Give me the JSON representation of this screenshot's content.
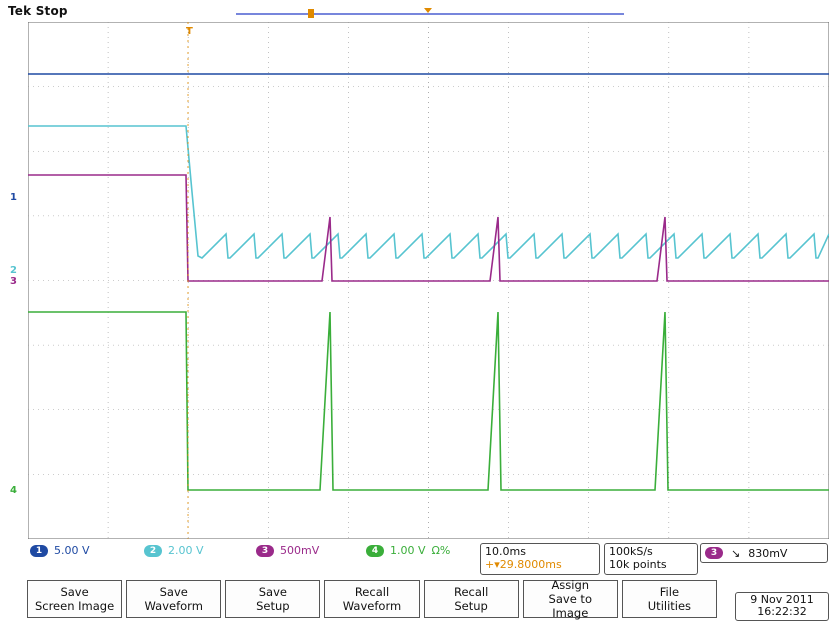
{
  "title": "Tek Stop",
  "colors": {
    "ch1": "#1f4aa3",
    "ch2": "#57c4d0",
    "ch3": "#9a2a8a",
    "ch4": "#3aae3a",
    "trigger": "#e08a00",
    "grid": "#777777"
  },
  "markers": {
    "ch1": "1",
    "ch2": "2",
    "ch3": "3",
    "ch4": "4",
    "trigger_top": "T"
  },
  "channels": [
    {
      "num": "1",
      "scale": "5.00 V",
      "color": "#1f4aa3"
    },
    {
      "num": "2",
      "scale": "2.00 V",
      "color": "#57c4d0"
    },
    {
      "num": "3",
      "scale": "500mV",
      "color": "#9a2a8a"
    },
    {
      "num": "4",
      "scale": "1.00 V",
      "color": "#3aae3a",
      "suffix": "Ω%"
    }
  ],
  "timebase": {
    "scale": "10.0ms",
    "position": "+▾29.8000ms"
  },
  "acquisition": {
    "rate": "100kS/s",
    "points": "10k points"
  },
  "trigger": {
    "channel": "3",
    "slope": "↘",
    "level": "830mV"
  },
  "menu": [
    {
      "label": "Save\nScreen Image"
    },
    {
      "label": "Save\nWaveform"
    },
    {
      "label": "Save\nSetup"
    },
    {
      "label": "Recall\nWaveform"
    },
    {
      "label": "Recall\nSetup"
    },
    {
      "label": "Assign\nSave to\nImage"
    },
    {
      "label": "File\nUtilities"
    }
  ],
  "datetime": {
    "date": "9 Nov 2011",
    "time": "16:22:32"
  }
}
